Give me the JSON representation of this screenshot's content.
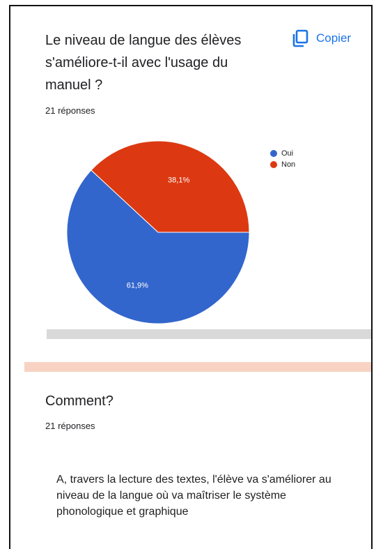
{
  "question": {
    "title": "Le niveau de langue des élèves s'améliore-t-il avec l'usage du manuel ?",
    "copy_label": "Copier",
    "responses": "21 réponses"
  },
  "chart_data": {
    "type": "pie",
    "title": "",
    "labels": [
      "Oui",
      "Non"
    ],
    "values": [
      61.9,
      38.1
    ],
    "data_labels": [
      "61,9%",
      "38,1%"
    ],
    "colors": [
      "#3366cc",
      "#dc3912"
    ],
    "legend_position": "right"
  },
  "comment": {
    "title": "Comment?",
    "responses": "21 réponses",
    "answer": "A, travers la lecture des textes, l'élève va s'améliorer au niveau de la langue où va maîtriser le système phonologique et graphique"
  }
}
